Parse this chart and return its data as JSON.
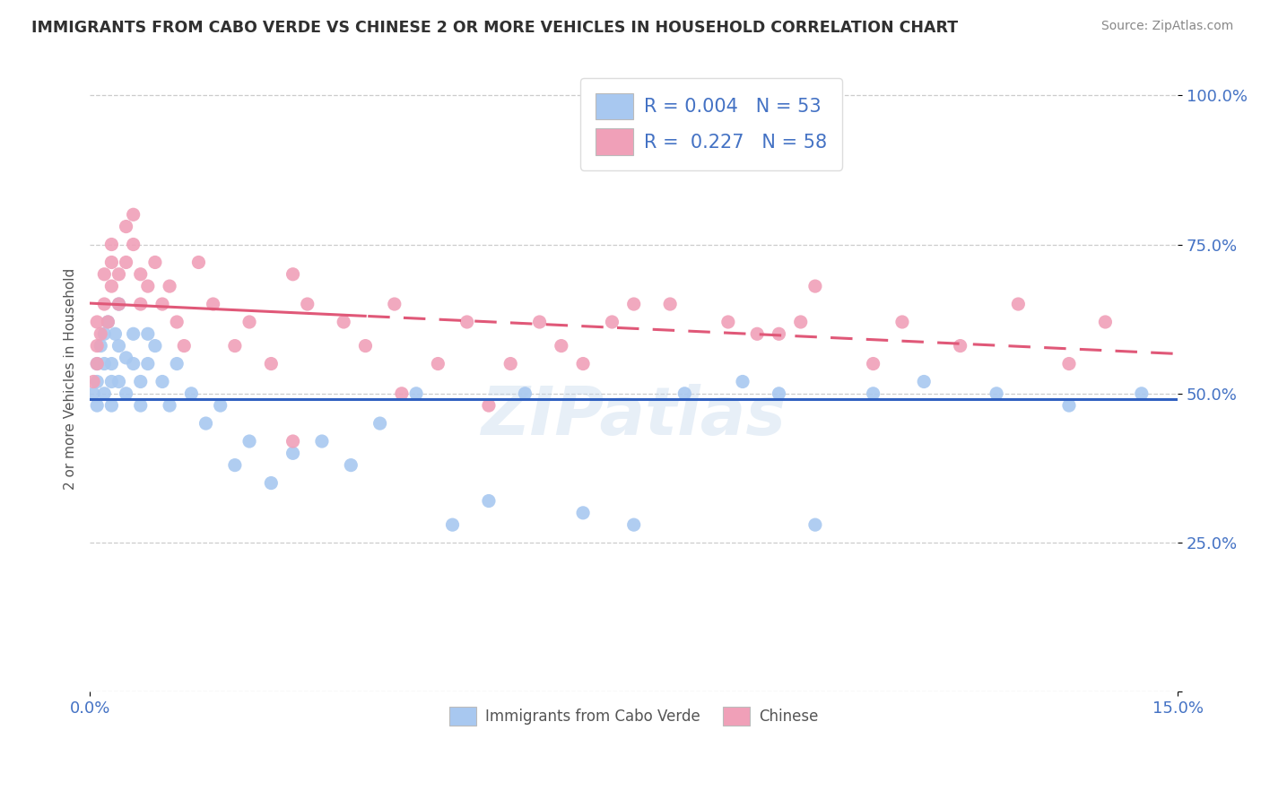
{
  "title": "IMMIGRANTS FROM CABO VERDE VS CHINESE 2 OR MORE VEHICLES IN HOUSEHOLD CORRELATION CHART",
  "source": "Source: ZipAtlas.com",
  "ylabel": "2 or more Vehicles in Household",
  "legend_label1": "Immigrants from Cabo Verde",
  "legend_label2": "Chinese",
  "r1": "0.004",
  "r2": "0.227",
  "n1": 53,
  "n2": 58,
  "color1": "#a8c8f0",
  "color2": "#f0a0b8",
  "trendline_color1": "#3060c0",
  "trendline_color2": "#e05878",
  "background_color": "#ffffff",
  "grid_color": "#cccccc",
  "title_color": "#303030",
  "axis_value_color": "#4472c4",
  "source_color": "#888888",
  "label_color": "#555555",
  "xmin": 0.0,
  "xmax": 0.15,
  "ymin": 0.0,
  "ymax": 1.05,
  "ytick_vals": [
    0.0,
    0.25,
    0.5,
    0.75,
    1.0
  ],
  "ytick_labels": [
    "",
    "25.0%",
    "50.0%",
    "75.0%",
    "100.0%"
  ],
  "xtick_vals": [
    0.0,
    0.15
  ],
  "xtick_labels": [
    "0.0%",
    "15.0%"
  ],
  "cabo_verde_x": [
    0.0005,
    0.001,
    0.001,
    0.001,
    0.0015,
    0.002,
    0.002,
    0.002,
    0.0025,
    0.003,
    0.003,
    0.003,
    0.0035,
    0.004,
    0.004,
    0.004,
    0.005,
    0.005,
    0.006,
    0.006,
    0.007,
    0.007,
    0.008,
    0.008,
    0.009,
    0.01,
    0.011,
    0.012,
    0.014,
    0.016,
    0.018,
    0.02,
    0.022,
    0.025,
    0.028,
    0.032,
    0.036,
    0.04,
    0.045,
    0.05,
    0.055,
    0.06,
    0.068,
    0.075,
    0.082,
    0.09,
    0.095,
    0.1,
    0.108,
    0.115,
    0.125,
    0.135,
    0.145
  ],
  "cabo_verde_y": [
    0.5,
    0.52,
    0.48,
    0.55,
    0.58,
    0.6,
    0.55,
    0.5,
    0.62,
    0.55,
    0.52,
    0.48,
    0.6,
    0.65,
    0.58,
    0.52,
    0.56,
    0.5,
    0.6,
    0.55,
    0.52,
    0.48,
    0.55,
    0.6,
    0.58,
    0.52,
    0.48,
    0.55,
    0.5,
    0.45,
    0.48,
    0.38,
    0.42,
    0.35,
    0.4,
    0.42,
    0.38,
    0.45,
    0.5,
    0.28,
    0.32,
    0.5,
    0.3,
    0.28,
    0.5,
    0.52,
    0.5,
    0.28,
    0.5,
    0.52,
    0.5,
    0.48,
    0.5
  ],
  "chinese_x": [
    0.0005,
    0.001,
    0.001,
    0.001,
    0.0015,
    0.002,
    0.002,
    0.0025,
    0.003,
    0.003,
    0.003,
    0.004,
    0.004,
    0.005,
    0.005,
    0.006,
    0.006,
    0.007,
    0.007,
    0.008,
    0.009,
    0.01,
    0.011,
    0.012,
    0.013,
    0.015,
    0.017,
    0.02,
    0.022,
    0.025,
    0.028,
    0.03,
    0.035,
    0.038,
    0.042,
    0.048,
    0.052,
    0.058,
    0.065,
    0.072,
    0.08,
    0.088,
    0.095,
    0.1,
    0.108,
    0.112,
    0.12,
    0.128,
    0.135,
    0.14,
    0.043,
    0.028,
    0.075,
    0.055,
    0.062,
    0.068,
    0.092,
    0.098
  ],
  "chinese_y": [
    0.52,
    0.55,
    0.62,
    0.58,
    0.6,
    0.65,
    0.7,
    0.62,
    0.72,
    0.68,
    0.75,
    0.7,
    0.65,
    0.78,
    0.72,
    0.8,
    0.75,
    0.7,
    0.65,
    0.68,
    0.72,
    0.65,
    0.68,
    0.62,
    0.58,
    0.72,
    0.65,
    0.58,
    0.62,
    0.55,
    0.7,
    0.65,
    0.62,
    0.58,
    0.65,
    0.55,
    0.62,
    0.55,
    0.58,
    0.62,
    0.65,
    0.62,
    0.6,
    0.68,
    0.55,
    0.62,
    0.58,
    0.65,
    0.55,
    0.62,
    0.5,
    0.42,
    0.65,
    0.48,
    0.62,
    0.55,
    0.6,
    0.62
  ],
  "trend_split_x": 0.038
}
